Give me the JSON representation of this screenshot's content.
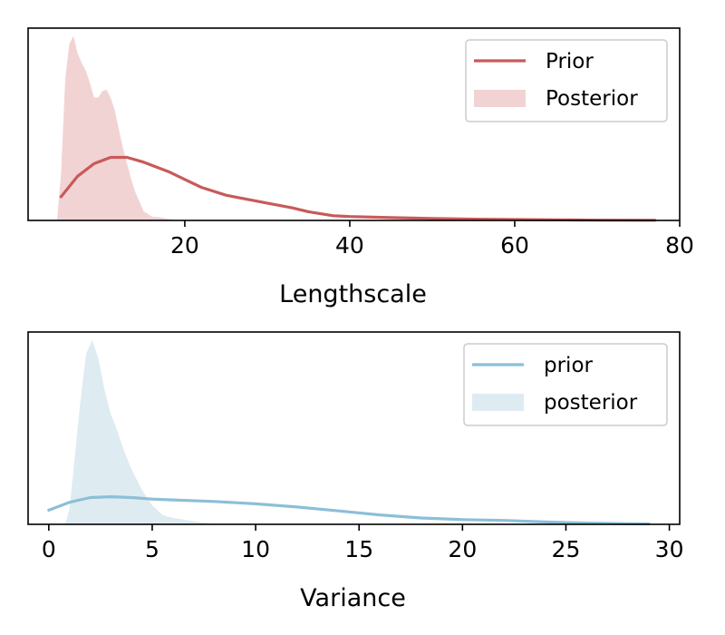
{
  "chart_data": [
    {
      "type": "area",
      "xlabel": "Lengthscale",
      "ylabel": "",
      "xlim": [
        1,
        80
      ],
      "ylim": [
        0,
        1.22
      ],
      "xticks": [
        20,
        40,
        60,
        80
      ],
      "show_yticks": false,
      "grid": false,
      "legend": "top-right",
      "series": [
        {
          "name": "Prior",
          "kind": "line",
          "color": "#c85a5a",
          "x": [
            5,
            7,
            9,
            11,
            13,
            15,
            18,
            20,
            22,
            25,
            28,
            30,
            33,
            35,
            38,
            40,
            45,
            50,
            55,
            60,
            65,
            70,
            77
          ],
          "y": [
            0.15,
            0.28,
            0.36,
            0.4,
            0.4,
            0.37,
            0.31,
            0.26,
            0.21,
            0.16,
            0.13,
            0.11,
            0.08,
            0.055,
            0.03,
            0.025,
            0.018,
            0.012,
            0.008,
            0.006,
            0.004,
            0.002,
            0.001
          ]
        },
        {
          "name": "Posterior",
          "kind": "area",
          "color": "#f2d3d4",
          "x": [
            4.5,
            5,
            5.5,
            6,
            6.5,
            7,
            7.5,
            8,
            8.5,
            9,
            9.5,
            10,
            10.5,
            11,
            11.5,
            12,
            12.5,
            13,
            13.5,
            14,
            15,
            16,
            17,
            18,
            19
          ],
          "y": [
            0.0,
            0.3,
            0.9,
            1.12,
            1.17,
            1.06,
            1.0,
            0.95,
            0.87,
            0.78,
            0.78,
            0.82,
            0.83,
            0.78,
            0.7,
            0.58,
            0.46,
            0.36,
            0.26,
            0.18,
            0.06,
            0.025,
            0.02,
            0.01,
            0.0
          ]
        }
      ]
    },
    {
      "type": "area",
      "xlabel": "Variance",
      "ylabel": "",
      "xlim": [
        -1,
        30.5
      ],
      "ylim": [
        0,
        1.22
      ],
      "xticks": [
        0,
        5,
        10,
        15,
        20,
        25,
        30
      ],
      "show_yticks": false,
      "grid": false,
      "legend": "top-right",
      "series": [
        {
          "name": "prior",
          "kind": "line",
          "color": "#8cbfd7",
          "x": [
            0,
            1,
            2,
            3,
            4,
            5,
            6,
            8,
            10,
            12,
            14,
            16,
            18,
            20,
            22,
            24,
            26,
            28,
            29
          ],
          "y": [
            0.09,
            0.14,
            0.17,
            0.175,
            0.17,
            0.16,
            0.155,
            0.145,
            0.13,
            0.11,
            0.085,
            0.06,
            0.04,
            0.03,
            0.025,
            0.015,
            0.008,
            0.004,
            0.003
          ]
        },
        {
          "name": "posterior",
          "kind": "area",
          "color": "#deecf2",
          "x": [
            0.8,
            1.0,
            1.2,
            1.5,
            1.8,
            2.1,
            2.4,
            2.7,
            3.0,
            3.3,
            3.6,
            4.0,
            4.5,
            5.0,
            5.5,
            6.0,
            7.0,
            8.0
          ],
          "y": [
            0.0,
            0.1,
            0.35,
            0.75,
            1.08,
            1.17,
            1.05,
            0.85,
            0.7,
            0.6,
            0.48,
            0.35,
            0.22,
            0.12,
            0.06,
            0.04,
            0.02,
            0.0
          ]
        }
      ]
    }
  ]
}
